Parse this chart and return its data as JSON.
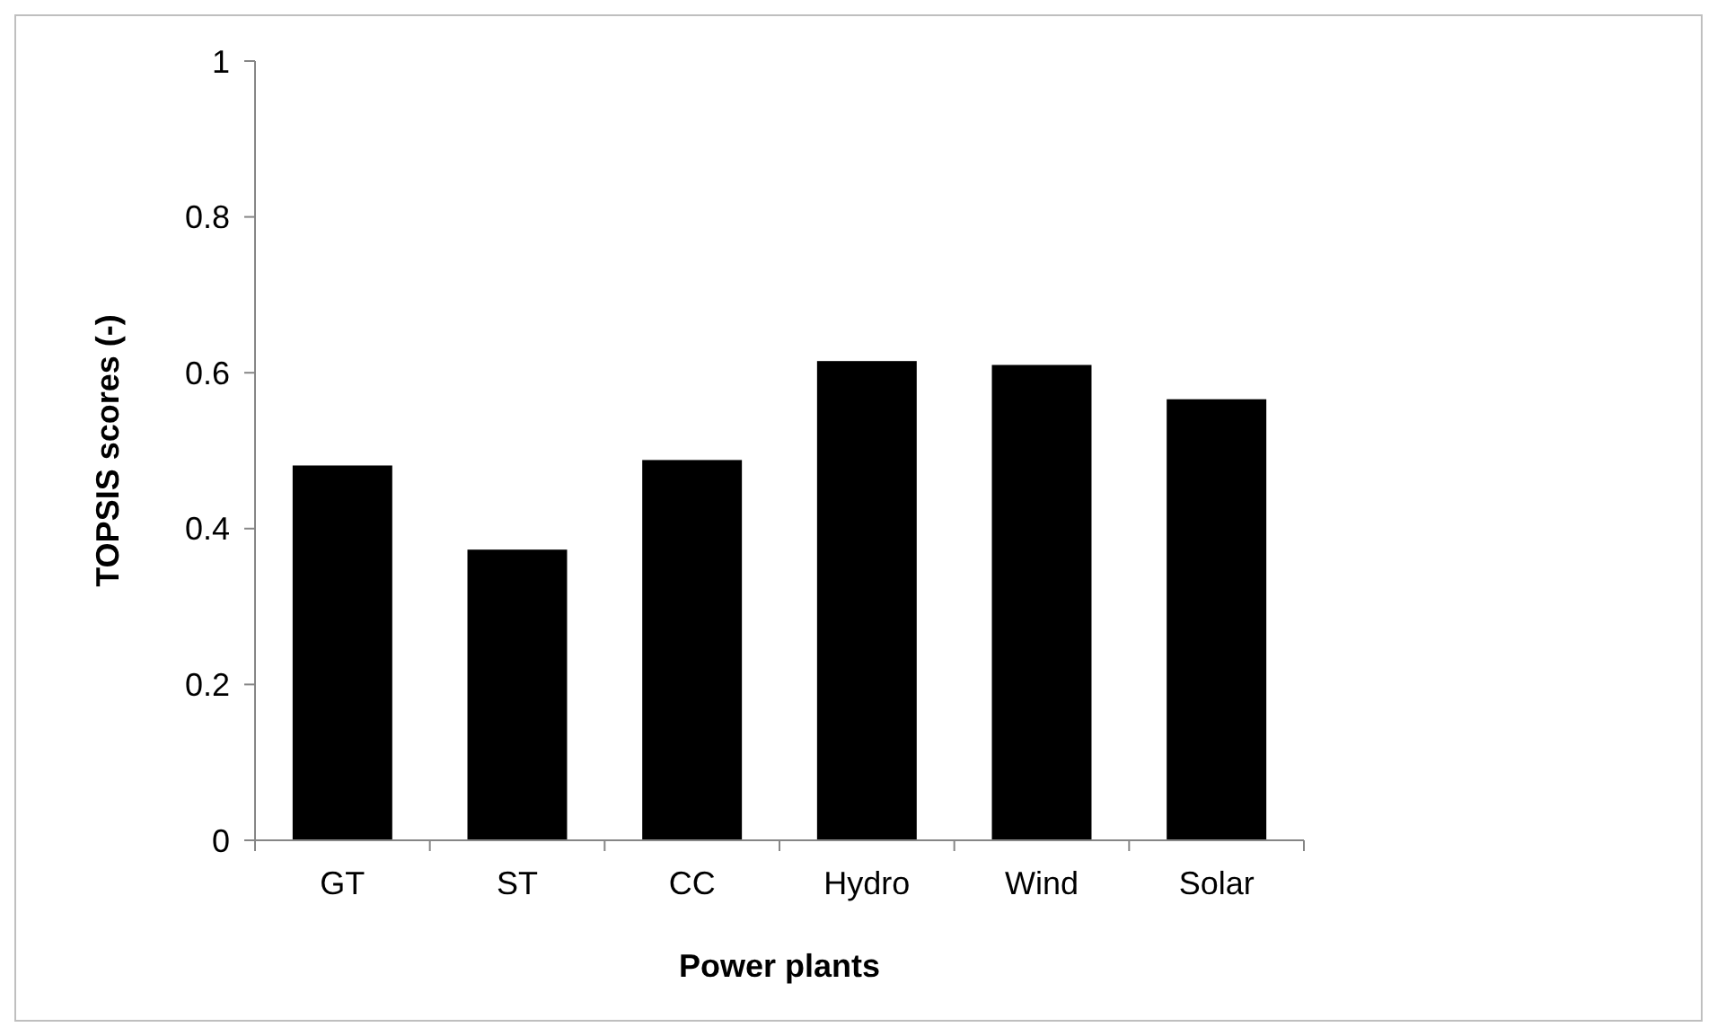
{
  "chart_data": {
    "type": "bar",
    "xlabel": "Power plants",
    "ylabel": "TOPSIS scores (-)",
    "categories": [
      "GT",
      "ST",
      "CC",
      "Hydro",
      "Wind",
      "Solar"
    ],
    "values": [
      0.481,
      0.373,
      0.488,
      0.615,
      0.61,
      0.566
    ],
    "color": "#000000",
    "ylim": [
      0,
      1
    ],
    "yticks": [
      0,
      0.2,
      0.4,
      0.6,
      0.8,
      1
    ],
    "grid": false
  }
}
